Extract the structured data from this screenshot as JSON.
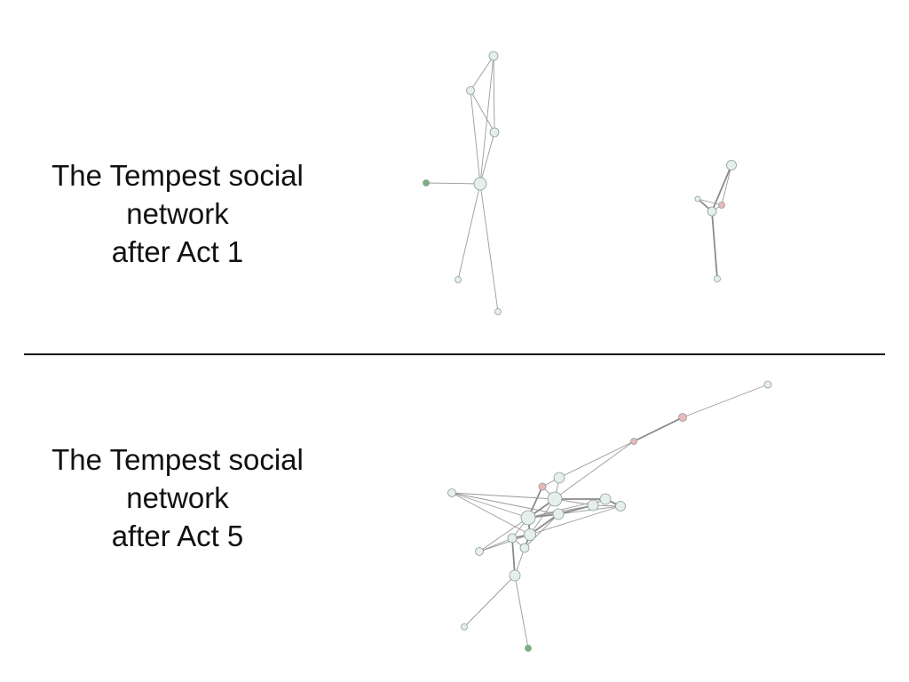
{
  "captions": {
    "act1": [
      "The Tempest social",
      "network",
      "after Act 1"
    ],
    "act5": [
      "The Tempest social",
      "network",
      "after Act 5"
    ]
  },
  "colors": {
    "node_default": "#e4efee",
    "node_stroke": "#8c9c9a",
    "node_red": "#e9b8b8",
    "node_green": "#79b27c"
  }
}
